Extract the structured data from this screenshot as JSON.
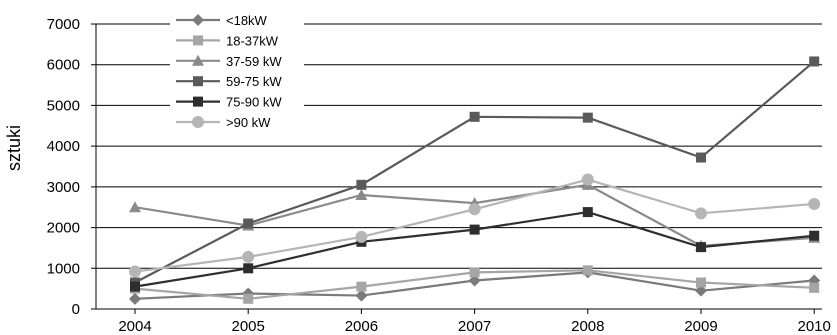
{
  "chart_data": {
    "type": "line",
    "title": "",
    "xlabel": "",
    "ylabel": "sztuki",
    "x": [
      "2004",
      "2005",
      "2006",
      "2007",
      "2008",
      "2009",
      "2010"
    ],
    "ylim": [
      0,
      7000
    ],
    "yticks": [
      "0",
      "1000",
      "2000",
      "3000",
      "4000",
      "5000",
      "6000",
      "7000"
    ],
    "grid": "horizontal",
    "legend_position": "top-left",
    "series": [
      {
        "name": "<18kW",
        "marker": "diamond",
        "color": "#7a7a7a",
        "values": [
          250,
          380,
          330,
          700,
          900,
          450,
          700
        ]
      },
      {
        "name": "18-37kW",
        "marker": "square",
        "color": "#a5a5a5",
        "values": [
          500,
          250,
          550,
          900,
          950,
          650,
          520
        ]
      },
      {
        "name": "37-59 kW",
        "marker": "triangle",
        "color": "#8a8a8a",
        "values": [
          2500,
          2050,
          2800,
          2600,
          3050,
          1550,
          1750
        ]
      },
      {
        "name": "59-75 kW",
        "marker": "square",
        "color": "#5a5a5a",
        "values": [
          650,
          2100,
          3050,
          4720,
          4700,
          3720,
          6080
        ]
      },
      {
        "name": "75-90 kW",
        "marker": "square",
        "color": "#2e2e2e",
        "values": [
          550,
          1000,
          1650,
          1950,
          2380,
          1520,
          1800
        ]
      },
      {
        "name": ">90 kW",
        "marker": "circle",
        "color": "#b5b5b5",
        "values": [
          920,
          1280,
          1770,
          2450,
          3180,
          2350,
          2580
        ]
      }
    ]
  }
}
